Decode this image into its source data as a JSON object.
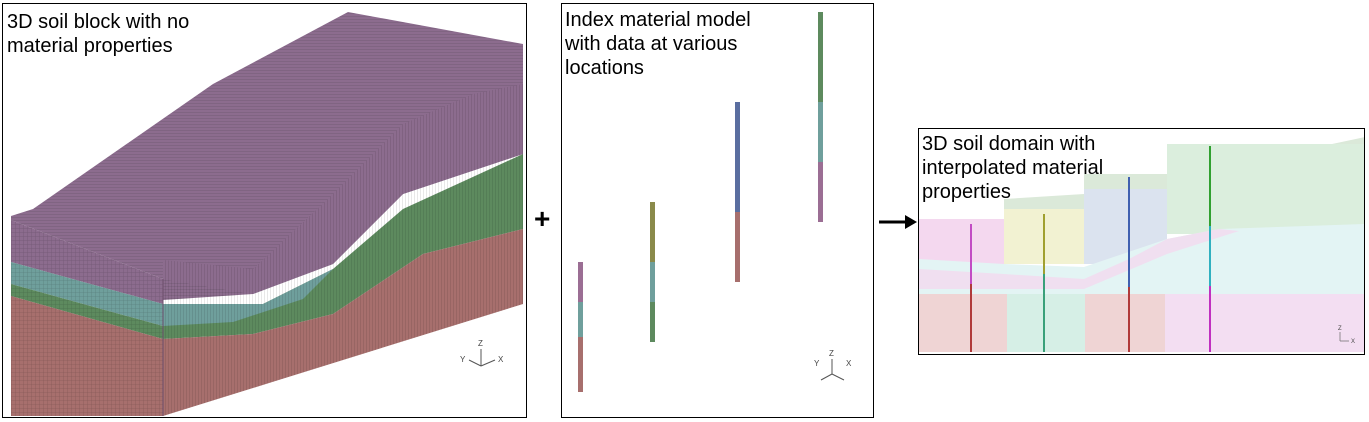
{
  "panels": {
    "left": {
      "caption": "3D soil block with no\nmaterial properties"
    },
    "middle": {
      "caption": "Index material model\nwith data at various\nlocations"
    },
    "right": {
      "caption": "3D soil domain with\ninterpolated material\nproperties"
    }
  },
  "operators": {
    "plus": "+",
    "arrow": "→"
  },
  "axes": {
    "x": "X",
    "y": "Y",
    "z": "Z"
  },
  "colors": {
    "top_layer": "#8c6c8e",
    "green_layer": "#5d8a5e",
    "teal_layer": "#6f9f9c",
    "bottom_layer": "#a76f6d"
  }
}
